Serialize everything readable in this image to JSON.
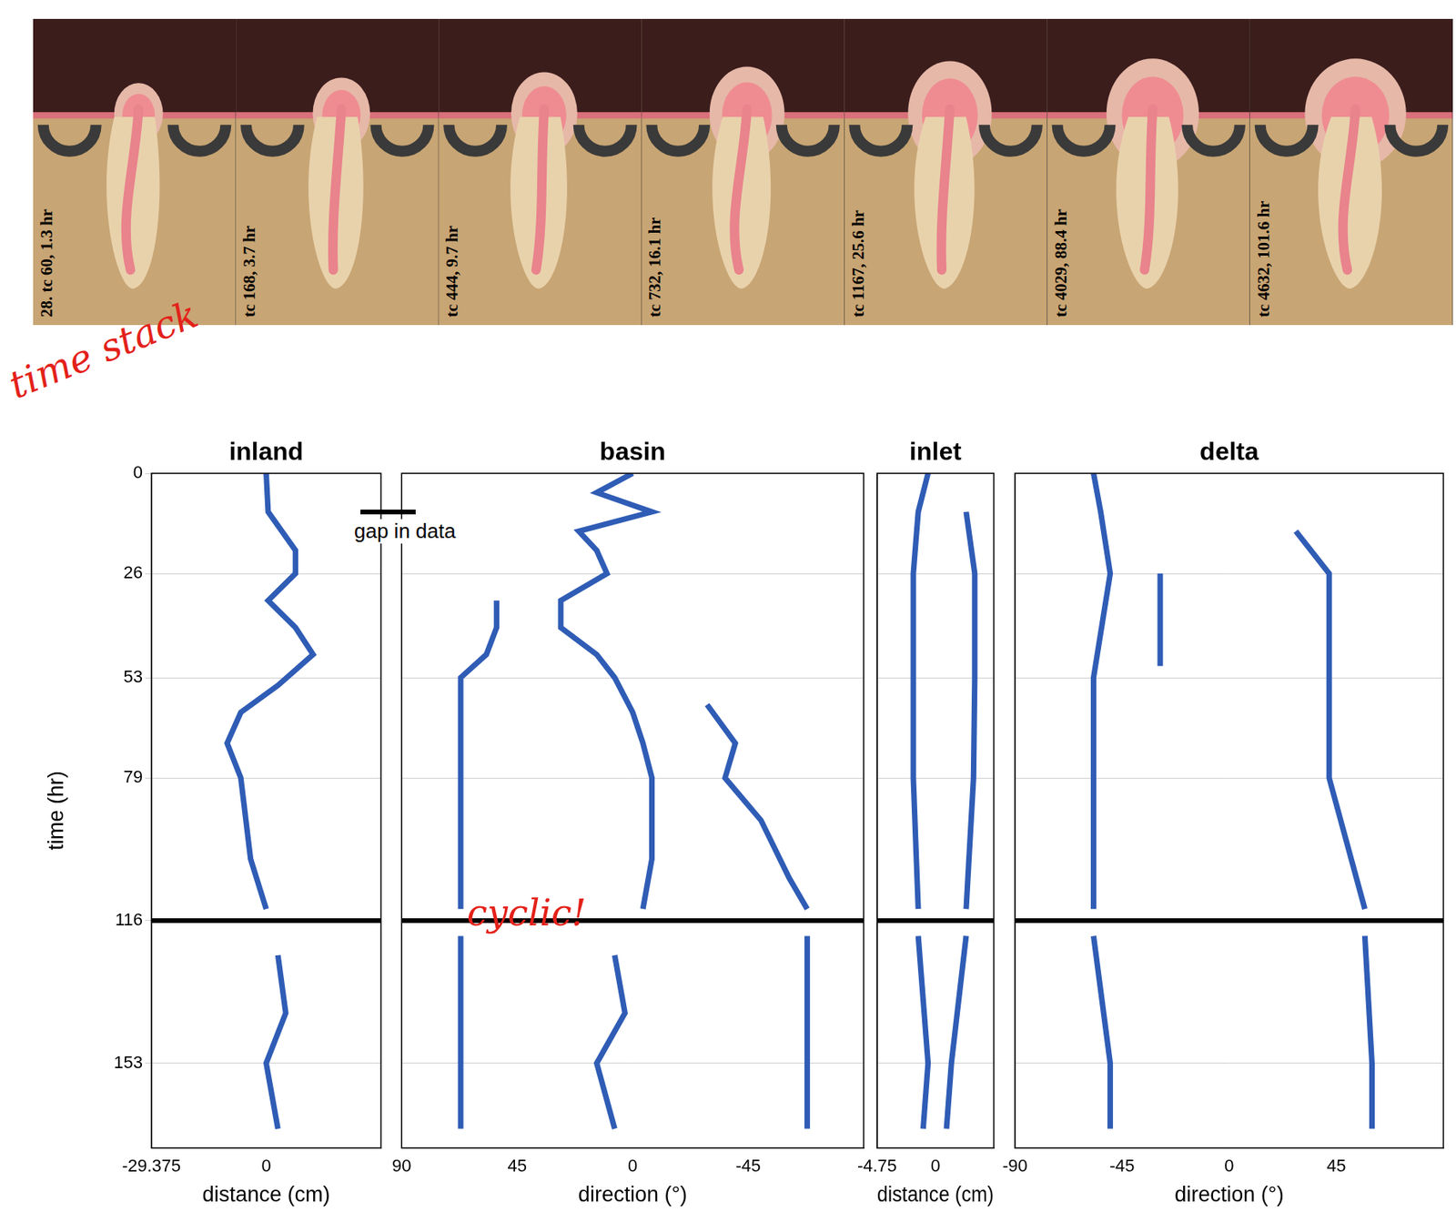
{
  "photos": {
    "labels": [
      "28. tc 60, 1.3 hr",
      "tc 168, 3.7 hr",
      "tc 444, 9.7 hr",
      "tc 732, 16.1 hr",
      "tc 1167, 25.6 hr",
      "tc 4029, 88.4 hr",
      "tc 4632, 101.6 hr"
    ]
  },
  "annotations": {
    "time_stack": "time stack",
    "gap_label": "gap in data",
    "cyclic": "cyclic!"
  },
  "chart_data": [
    {
      "type": "line",
      "title": "inland",
      "x_label": "distance (cm)",
      "y_label": "time (hr)",
      "xlim": [
        -29.375,
        29.375
      ],
      "xticks": [
        -29.375,
        0
      ],
      "ylim": [
        0,
        175
      ],
      "yticks": [
        0,
        26,
        53,
        79,
        116,
        153
      ],
      "grid": true,
      "gap": 116,
      "series": [
        {
          "color": "#2f5cb5",
          "x": [
            0,
            0.5,
            7.5,
            7.5,
            0.5,
            7.5,
            12,
            3,
            -6.5,
            -10,
            -6.5,
            -4,
            0
          ],
          "values": [
            0,
            10,
            20,
            26,
            33,
            40,
            47,
            55,
            62,
            70,
            79,
            100,
            113
          ]
        },
        {
          "color": "#2f5cb5",
          "x": [
            3,
            5,
            0,
            3
          ],
          "values": [
            125,
            140,
            153,
            170
          ]
        }
      ]
    },
    {
      "type": "line",
      "title": "basin",
      "x_label": "direction (°)",
      "xlim": [
        90,
        -90
      ],
      "xticks": [
        90,
        45,
        0,
        -45
      ],
      "ylim": [
        0,
        175
      ],
      "yticks": [
        0,
        26,
        53,
        79,
        116,
        153
      ],
      "grid": true,
      "gap": 116,
      "tick_labels": "x",
      "series": [
        {
          "color": "#2f5cb5",
          "x": [
            0,
            14,
            -7.5,
            21,
            14,
            10,
            28,
            28,
            14,
            7,
            0,
            -4,
            -7.5,
            -7.5,
            -4
          ],
          "values": [
            0,
            5,
            10,
            15,
            20,
            26,
            33,
            40,
            47,
            53,
            62,
            70,
            79,
            100,
            113
          ]
        },
        {
          "color": "#2f5cb5",
          "x": [
            7,
            3,
            14,
            7
          ],
          "values": [
            125,
            140,
            153,
            170
          ]
        },
        {
          "color": "#2f5cb5",
          "x": [
            53,
            53,
            57,
            67,
            67,
            67
          ],
          "values": [
            33,
            40,
            47,
            53,
            79,
            113
          ]
        },
        {
          "color": "#2f5cb5",
          "x": [
            67,
            67
          ],
          "values": [
            120,
            170
          ]
        },
        {
          "color": "#2f5cb5",
          "x": [
            -29,
            -40,
            -36,
            -50,
            -61,
            -68
          ],
          "values": [
            60,
            70,
            79,
            90,
            105,
            113
          ]
        },
        {
          "color": "#2f5cb5",
          "x": [
            -68,
            -68
          ],
          "values": [
            120,
            170
          ]
        }
      ]
    },
    {
      "type": "line",
      "title": "inlet",
      "x_label": "distance (cm)",
      "xlim": [
        -4.75,
        4.75
      ],
      "xticks": [
        -4.75,
        0
      ],
      "ylim": [
        0,
        175
      ],
      "yticks": [
        0,
        26,
        53,
        79,
        116,
        153
      ],
      "grid": true,
      "gap": 116,
      "tick_labels": "x",
      "series": [
        {
          "color": "#2f5cb5",
          "x": [
            -0.6,
            -1.4,
            -1.8,
            -1.8,
            -1.8,
            -1.4
          ],
          "values": [
            0,
            10,
            26,
            53,
            79,
            113
          ]
        },
        {
          "color": "#2f5cb5",
          "x": [
            -1.4,
            -0.6,
            -1.0
          ],
          "values": [
            120,
            153,
            170
          ]
        },
        {
          "color": "#2f5cb5",
          "x": [
            2.5,
            3.2,
            3.2,
            3.1,
            2.5
          ],
          "values": [
            10,
            26,
            53,
            79,
            113
          ]
        },
        {
          "color": "#2f5cb5",
          "x": [
            2.5,
            1.3,
            0.9
          ],
          "values": [
            120,
            153,
            170
          ]
        }
      ]
    },
    {
      "type": "line",
      "title": "delta",
      "x_label": "direction (°)",
      "xlim": [
        -90,
        90
      ],
      "xticks": [
        -90,
        -45,
        0,
        45
      ],
      "ylim": [
        0,
        175
      ],
      "yticks": [
        0,
        26,
        53,
        79,
        116,
        153
      ],
      "grid": true,
      "gap": 116,
      "tick_labels": "x",
      "series": [
        {
          "color": "#2f5cb5",
          "x": [
            -57,
            -54,
            -50,
            -57,
            -57,
            -57
          ],
          "values": [
            0,
            10,
            26,
            53,
            79,
            113
          ]
        },
        {
          "color": "#2f5cb5",
          "x": [
            -57,
            -50,
            -50
          ],
          "values": [
            120,
            153,
            170
          ]
        },
        {
          "color": "#2f5cb5",
          "x": [
            -29,
            -29,
            -29
          ],
          "values": [
            26,
            40,
            50
          ]
        },
        {
          "color": "#2f5cb5",
          "x": [
            28,
            42,
            42,
            42,
            57
          ],
          "values": [
            15,
            26,
            53,
            79,
            113
          ]
        },
        {
          "color": "#2f5cb5",
          "x": [
            57,
            60,
            60
          ],
          "values": [
            120,
            153,
            170
          ]
        }
      ]
    }
  ]
}
